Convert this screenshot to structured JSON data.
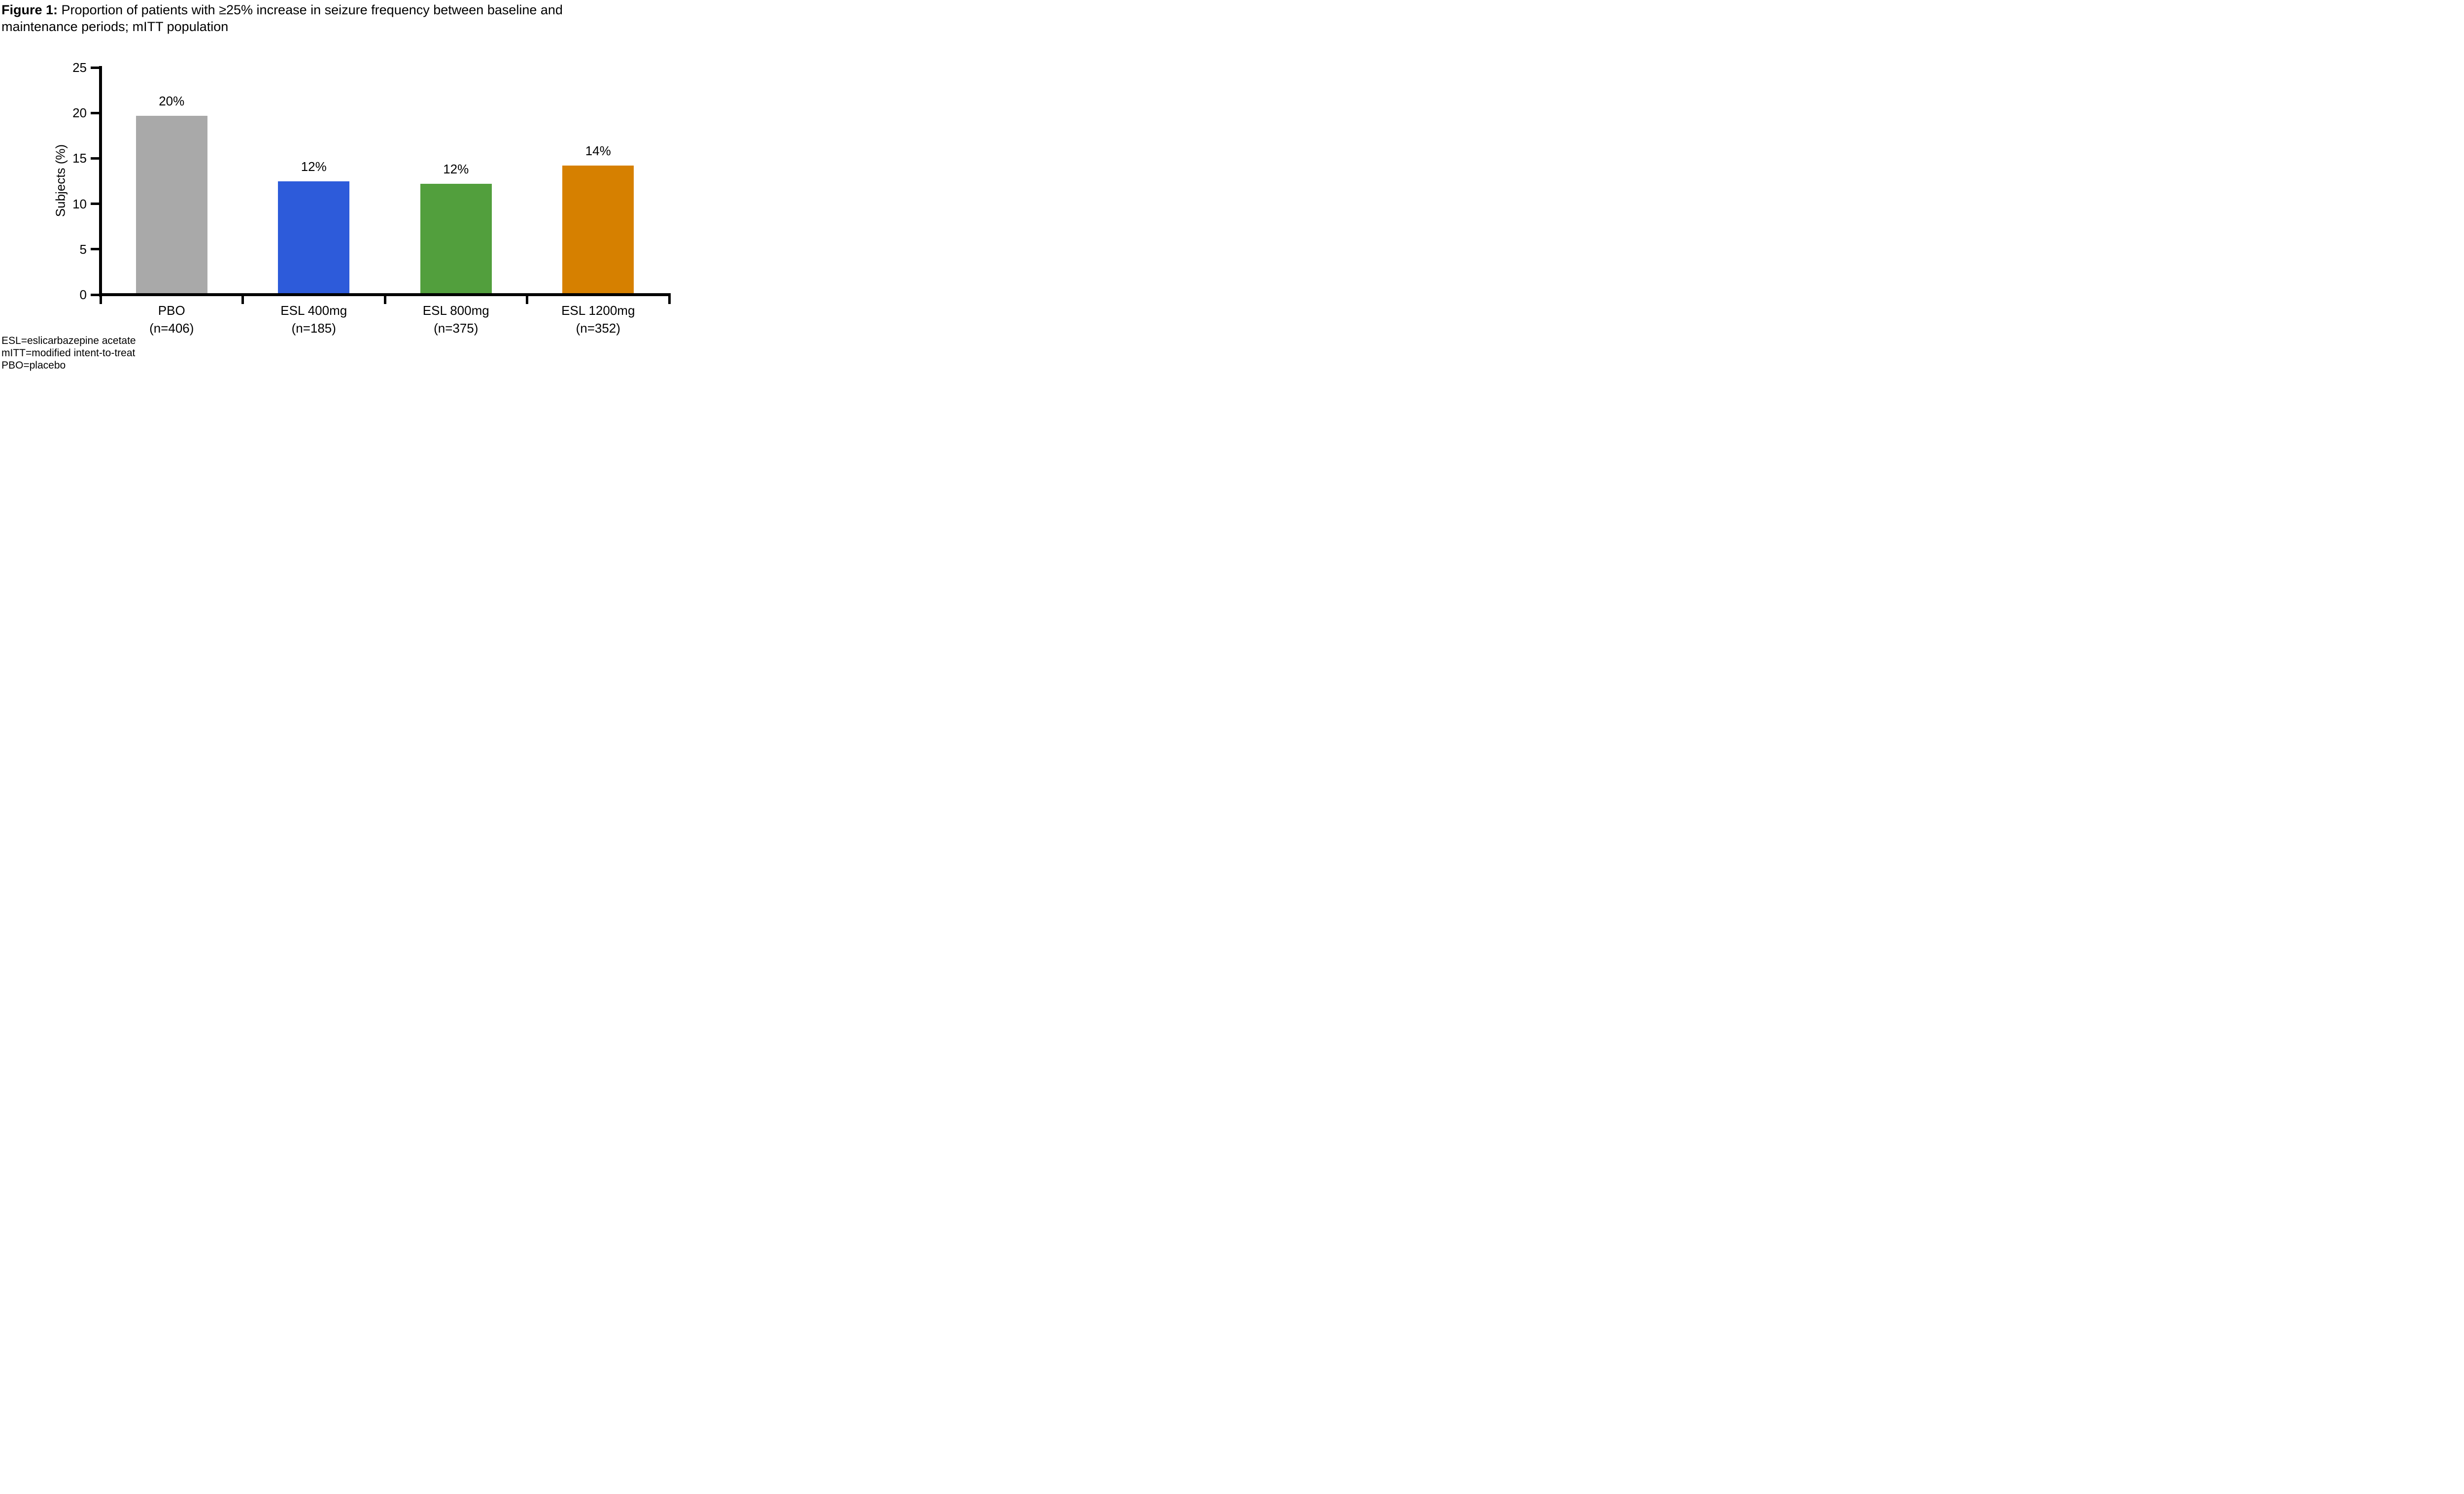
{
  "title": {
    "prefix": "Figure 1:",
    "line1_rest": " Proportion of patients with ≥25% increase in seizure frequency between baseline and",
    "line2": "maintenance periods; mITT population"
  },
  "footnotes": [
    "ESL=eslicarbazepine acetate",
    "mITT=modified intent-to-treat",
    "PBO=placebo"
  ],
  "chart_data": {
    "type": "bar",
    "title": "Figure 1: Proportion of patients with ≥25% increase in seizure frequency between baseline and maintenance periods; mITT population",
    "xlabel": "",
    "ylabel": "Subjects (%)",
    "ylim": [
      0,
      25
    ],
    "yticks": [
      0,
      5,
      10,
      15,
      20,
      25
    ],
    "grid": false,
    "legend": "none",
    "axis_color": "#000000",
    "bars": [
      {
        "category": "PBO",
        "n_label": "(n=406)",
        "value": 19.7,
        "data_label": "20%",
        "color": "#A9A9A9"
      },
      {
        "category": "ESL 400mg",
        "n_label": "(n=185)",
        "value": 12.5,
        "data_label": "12%",
        "color": "#2D5BDA"
      },
      {
        "category": "ESL 800mg",
        "n_label": "(n=375)",
        "value": 12.2,
        "data_label": "12%",
        "color": "#529F3D"
      },
      {
        "category": "ESL 1200mg",
        "n_label": "(n=352)",
        "value": 14.2,
        "data_label": "14%",
        "color": "#D68000"
      }
    ]
  }
}
